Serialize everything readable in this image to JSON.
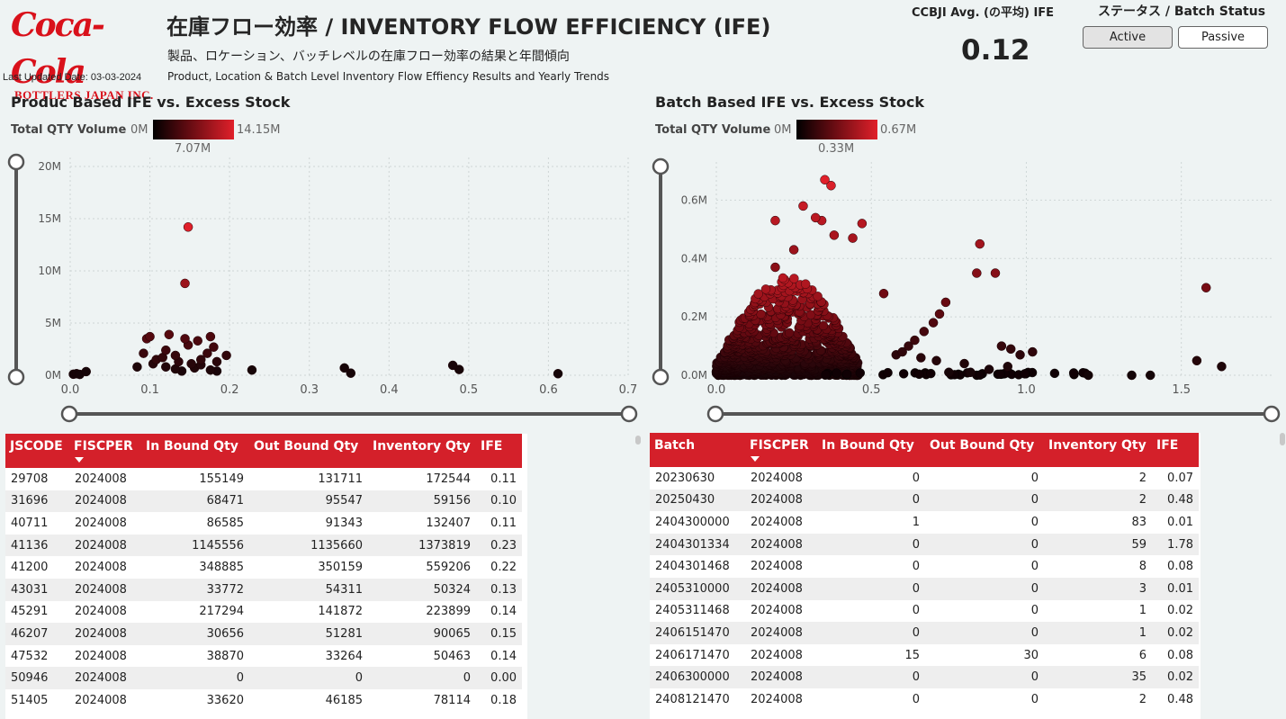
{
  "header": {
    "logo_script": "Coca-Cola",
    "logo_sub": "BOTTLERS JAPAN INC.",
    "last_updated": "Last Updated Date: 03-03-2024",
    "title": "在庫フロー効率 / INVENTORY FLOW EFFICIENCY (IFE)",
    "subtitle_jp": "製品、ロケーション、バッチレベルの在庫フロー効率の結果と年間傾向",
    "subtitle_en": "Product, Location & Batch Level Inventory Flow Effiency Results and Yearly Trends"
  },
  "kpi": {
    "label": "CCBJI Avg. (の平均) IFE",
    "value": "0.12"
  },
  "status": {
    "label": "ステータス / Batch Status",
    "options": [
      "Active",
      "Passive"
    ],
    "selected": "Active"
  },
  "colors": {
    "accent": "#d4202a",
    "low": "#000000",
    "high": "#e0202a"
  },
  "product_chart": {
    "title": "Produc Based IFE vs. Excess Stock",
    "legend_label": "Total QTY Volume",
    "legend_min": "0M",
    "legend_max": "14.15M",
    "legend_mid": "7.07M"
  },
  "batch_chart": {
    "title": "Batch Based IFE vs. Excess Stock",
    "legend_label": "Total QTY Volume",
    "legend_min": "0M",
    "legend_max": "0.67M",
    "legend_mid": "0.33M"
  },
  "chart_data": [
    {
      "type": "scatter",
      "title": "Produc Based IFE vs. Excess Stock",
      "xlim": [
        0,
        0.7
      ],
      "ylim": [
        0,
        20000000
      ],
      "x_ticks": [
        "0.0",
        "0.1",
        "0.2",
        "0.3",
        "0.4",
        "0.5",
        "0.6",
        "0.7"
      ],
      "y_ticks": [
        "0M",
        "5M",
        "10M",
        "15M",
        "20M"
      ],
      "color_range": [
        0,
        14150000
      ],
      "points": [
        {
          "x": 0.148,
          "y": 14200000,
          "c": 14150000
        },
        {
          "x": 0.144,
          "y": 8800000,
          "c": 9000000
        },
        {
          "x": 0.096,
          "y": 3500000,
          "c": 4000000
        },
        {
          "x": 0.1,
          "y": 3700000,
          "c": 4000000
        },
        {
          "x": 0.124,
          "y": 3900000,
          "c": 4200000
        },
        {
          "x": 0.144,
          "y": 3500000,
          "c": 3800000
        },
        {
          "x": 0.148,
          "y": 2900000,
          "c": 3200000
        },
        {
          "x": 0.16,
          "y": 3300000,
          "c": 3400000
        },
        {
          "x": 0.176,
          "y": 3700000,
          "c": 3600000
        },
        {
          "x": 0.18,
          "y": 2700000,
          "c": 2800000
        },
        {
          "x": 0.172,
          "y": 2100000,
          "c": 2400000
        },
        {
          "x": 0.12,
          "y": 2400000,
          "c": 2600000
        },
        {
          "x": 0.132,
          "y": 1900000,
          "c": 2200000
        },
        {
          "x": 0.092,
          "y": 2100000,
          "c": 2400000
        },
        {
          "x": 0.108,
          "y": 1500000,
          "c": 1800000
        },
        {
          "x": 0.116,
          "y": 1700000,
          "c": 1900000
        },
        {
          "x": 0.136,
          "y": 1300000,
          "c": 1600000
        },
        {
          "x": 0.152,
          "y": 1100000,
          "c": 1200000
        },
        {
          "x": 0.164,
          "y": 1500000,
          "c": 1700000
        },
        {
          "x": 0.196,
          "y": 1900000,
          "c": 1800000
        },
        {
          "x": 0.184,
          "y": 1300000,
          "c": 1400000
        },
        {
          "x": 0.104,
          "y": 1100000,
          "c": 1200000
        },
        {
          "x": 0.12,
          "y": 800000,
          "c": 900000
        },
        {
          "x": 0.132,
          "y": 600000,
          "c": 700000
        },
        {
          "x": 0.156,
          "y": 700000,
          "c": 800000
        },
        {
          "x": 0.164,
          "y": 1000000,
          "c": 1000000
        },
        {
          "x": 0.176,
          "y": 500000,
          "c": 600000
        },
        {
          "x": 0.084,
          "y": 800000,
          "c": 600000
        },
        {
          "x": 0.14,
          "y": 400000,
          "c": 400000
        },
        {
          "x": 0.184,
          "y": 400000,
          "c": 300000
        },
        {
          "x": 0.228,
          "y": 500000,
          "c": 200000
        },
        {
          "x": 0.004,
          "y": 100000,
          "c": 50000
        },
        {
          "x": 0.008,
          "y": 150000,
          "c": 50000
        },
        {
          "x": 0.012,
          "y": 80000,
          "c": 50000
        },
        {
          "x": 0.02,
          "y": 350000,
          "c": 100000
        },
        {
          "x": 0.344,
          "y": 700000,
          "c": 200000
        },
        {
          "x": 0.352,
          "y": 200000,
          "c": 100000
        },
        {
          "x": 0.48,
          "y": 950000,
          "c": 300000
        },
        {
          "x": 0.488,
          "y": 550000,
          "c": 200000
        },
        {
          "x": 0.612,
          "y": 150000,
          "c": 60000
        }
      ]
    },
    {
      "type": "scatter",
      "title": "Batch Based IFE vs. Excess Stock",
      "xlim": [
        0,
        1.8
      ],
      "ylim": [
        0,
        0.7
      ],
      "x_ticks": [
        "0.0",
        "0.5",
        "1.0",
        "1.5"
      ],
      "y_ticks": [
        "0.0M",
        "0.2M",
        "0.4M",
        "0.6M"
      ],
      "color_range": [
        0,
        0.67
      ],
      "points": [
        {
          "x": 0.35,
          "y": 0.67,
          "c": 0.67
        },
        {
          "x": 0.37,
          "y": 0.65,
          "c": 0.65
        },
        {
          "x": 0.28,
          "y": 0.58,
          "c": 0.58
        },
        {
          "x": 0.32,
          "y": 0.54,
          "c": 0.54
        },
        {
          "x": 0.34,
          "y": 0.53,
          "c": 0.53
        },
        {
          "x": 0.19,
          "y": 0.53,
          "c": 0.53
        },
        {
          "x": 0.47,
          "y": 0.52,
          "c": 0.52
        },
        {
          "x": 0.38,
          "y": 0.48,
          "c": 0.48
        },
        {
          "x": 0.44,
          "y": 0.47,
          "c": 0.47
        },
        {
          "x": 0.25,
          "y": 0.43,
          "c": 0.43
        },
        {
          "x": 0.85,
          "y": 0.45,
          "c": 0.45
        },
        {
          "x": 0.19,
          "y": 0.37,
          "c": 0.37
        },
        {
          "x": 0.84,
          "y": 0.35,
          "c": 0.35
        },
        {
          "x": 0.9,
          "y": 0.35,
          "c": 0.35
        },
        {
          "x": 1.58,
          "y": 0.3,
          "c": 0.3
        },
        {
          "x": 0.54,
          "y": 0.28,
          "c": 0.28
        },
        {
          "x": 0.74,
          "y": 0.25,
          "c": 0.25
        },
        {
          "x": 0.72,
          "y": 0.21,
          "c": 0.21
        },
        {
          "x": 0.7,
          "y": 0.18,
          "c": 0.18
        },
        {
          "x": 0.67,
          "y": 0.15,
          "c": 0.15
        },
        {
          "x": 0.64,
          "y": 0.12,
          "c": 0.12
        },
        {
          "x": 0.62,
          "y": 0.1,
          "c": 0.1
        },
        {
          "x": 0.6,
          "y": 0.08,
          "c": 0.08
        },
        {
          "x": 0.58,
          "y": 0.07,
          "c": 0.07
        },
        {
          "x": 0.66,
          "y": 0.06,
          "c": 0.06
        },
        {
          "x": 0.71,
          "y": 0.05,
          "c": 0.05
        },
        {
          "x": 0.8,
          "y": 0.04,
          "c": 0.04
        },
        {
          "x": 0.92,
          "y": 0.1,
          "c": 0.1
        },
        {
          "x": 0.95,
          "y": 0.09,
          "c": 0.09
        },
        {
          "x": 0.98,
          "y": 0.07,
          "c": 0.07
        },
        {
          "x": 1.02,
          "y": 0.08,
          "c": 0.08
        },
        {
          "x": 0.94,
          "y": 0.03,
          "c": 0.03
        },
        {
          "x": 0.88,
          "y": 0.02,
          "c": 0.02
        },
        {
          "x": 0.82,
          "y": 0.01,
          "c": 0.01
        },
        {
          "x": 0.75,
          "y": 0.01,
          "c": 0.01
        },
        {
          "x": 1.2,
          "y": 0.0,
          "c": 0.0
        },
        {
          "x": 1.34,
          "y": 0.0,
          "c": 0.0
        },
        {
          "x": 1.4,
          "y": 0.0,
          "c": 0.0
        },
        {
          "x": 1.55,
          "y": 0.05,
          "c": 0.05
        },
        {
          "x": 1.63,
          "y": 0.03,
          "c": 0.03
        }
      ],
      "cloud_note": "dense cluster of many points between x 0.0-0.45 and y 0.0-0.3"
    }
  ],
  "product_table": {
    "columns": [
      "JSCODE",
      "FISCPER",
      "In Bound Qty",
      "Out Bound Qty",
      "Inventory Qty",
      "IFE"
    ],
    "rows": [
      [
        "29708",
        "2024008",
        "155149",
        "131711",
        "172544",
        "0.11"
      ],
      [
        "31696",
        "2024008",
        "68471",
        "95547",
        "59156",
        "0.10"
      ],
      [
        "40711",
        "2024008",
        "86585",
        "91343",
        "132407",
        "0.11"
      ],
      [
        "41136",
        "2024008",
        "1145556",
        "1135660",
        "1373819",
        "0.23"
      ],
      [
        "41200",
        "2024008",
        "348885",
        "350159",
        "559206",
        "0.22"
      ],
      [
        "43031",
        "2024008",
        "33772",
        "54311",
        "50324",
        "0.13"
      ],
      [
        "45291",
        "2024008",
        "217294",
        "141872",
        "223899",
        "0.14"
      ],
      [
        "46207",
        "2024008",
        "30656",
        "51281",
        "90065",
        "0.15"
      ],
      [
        "47532",
        "2024008",
        "38870",
        "33264",
        "50463",
        "0.14"
      ],
      [
        "50946",
        "2024008",
        "0",
        "0",
        "0",
        "0.00"
      ],
      [
        "51405",
        "2024008",
        "33620",
        "46185",
        "78114",
        "0.18"
      ]
    ]
  },
  "batch_table": {
    "columns": [
      "Batch",
      "FISCPER",
      "In Bound Qty",
      "Out Bound Qty",
      "Inventory Qty",
      "IFE"
    ],
    "rows": [
      [
        "20230630",
        "2024008",
        "0",
        "0",
        "2",
        "0.07"
      ],
      [
        "20250430",
        "2024008",
        "0",
        "0",
        "2",
        "0.48"
      ],
      [
        "2404300000",
        "2024008",
        "1",
        "0",
        "83",
        "0.01"
      ],
      [
        "2404301334",
        "2024008",
        "0",
        "0",
        "59",
        "1.78"
      ],
      [
        "2404301468",
        "2024008",
        "0",
        "0",
        "8",
        "0.08"
      ],
      [
        "2405310000",
        "2024008",
        "0",
        "0",
        "3",
        "0.01"
      ],
      [
        "2405311468",
        "2024008",
        "0",
        "0",
        "1",
        "0.02"
      ],
      [
        "2406151470",
        "2024008",
        "0",
        "0",
        "1",
        "0.02"
      ],
      [
        "2406171470",
        "2024008",
        "15",
        "30",
        "6",
        "0.08"
      ],
      [
        "2406300000",
        "2024008",
        "0",
        "0",
        "35",
        "0.02"
      ],
      [
        "2408121470",
        "2024008",
        "0",
        "0",
        "2",
        "0.48"
      ]
    ]
  }
}
